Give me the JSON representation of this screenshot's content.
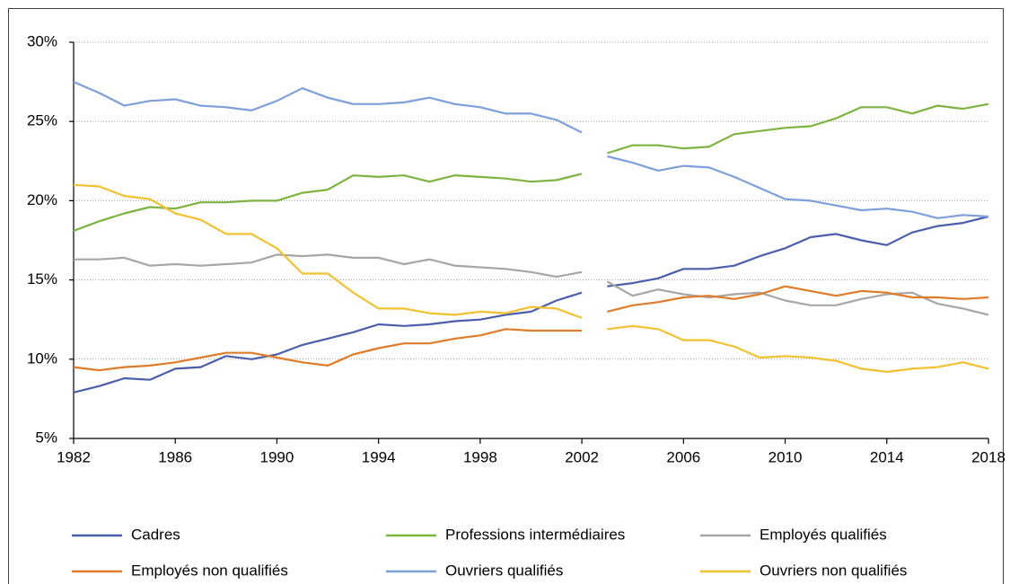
{
  "chart_data": {
    "type": "line",
    "x": [
      1982,
      1983,
      1984,
      1985,
      1986,
      1987,
      1988,
      1989,
      1990,
      1991,
      1992,
      1993,
      1994,
      1995,
      1996,
      1997,
      1998,
      1999,
      2000,
      2001,
      2002,
      null,
      2003,
      2004,
      2005,
      2006,
      2007,
      2008,
      2009,
      2010,
      2011,
      2012,
      2013,
      2014,
      2015,
      2016,
      2017,
      2018
    ],
    "xlim": [
      1982,
      2018
    ],
    "xticks": [
      1982,
      1986,
      1990,
      1994,
      1998,
      2002,
      2006,
      2010,
      2014,
      2018
    ],
    "ylim": [
      5,
      30
    ],
    "yticks": [
      {
        "value": 5,
        "label": "5%"
      },
      {
        "value": 10,
        "label": "10%"
      },
      {
        "value": 15,
        "label": "15%"
      },
      {
        "value": 20,
        "label": "20%"
      },
      {
        "value": 25,
        "label": "25%"
      },
      {
        "value": 30,
        "label": "30%"
      }
    ],
    "grid": true,
    "legend": "bottom",
    "series": [
      {
        "name": "Cadres",
        "color": "#4a5eab",
        "values": [
          7.9,
          8.3,
          8.8,
          8.7,
          9.4,
          9.5,
          10.2,
          10.0,
          10.3,
          10.9,
          11.3,
          11.7,
          12.2,
          12.1,
          12.2,
          12.4,
          12.5,
          12.8,
          13.0,
          13.7,
          14.2,
          null,
          14.6,
          14.8,
          15.1,
          15.7,
          15.7,
          15.9,
          16.5,
          17.0,
          17.7,
          17.9,
          17.5,
          17.2,
          18.0,
          18.4,
          18.6,
          19.0
        ]
      },
      {
        "name": "Professions intermédiaires",
        "color": "#7db441",
        "values": [
          18.1,
          18.7,
          19.2,
          19.6,
          19.5,
          19.9,
          19.9,
          20.0,
          20.0,
          20.5,
          20.7,
          21.6,
          21.5,
          21.6,
          21.2,
          21.6,
          21.5,
          21.4,
          21.2,
          21.3,
          21.7,
          null,
          23.0,
          23.5,
          23.5,
          23.3,
          23.4,
          24.2,
          24.4,
          24.6,
          24.7,
          25.2,
          25.9,
          25.9,
          25.5,
          26.0,
          25.8,
          26.1
        ]
      },
      {
        "name": "Employés qualifiés",
        "color": "#a6a6a6",
        "values": [
          16.3,
          16.3,
          16.4,
          15.9,
          16.0,
          15.9,
          16.0,
          16.1,
          16.6,
          16.5,
          16.6,
          16.4,
          16.4,
          16.0,
          16.3,
          15.9,
          15.8,
          15.7,
          15.5,
          15.2,
          15.5,
          null,
          14.9,
          14.0,
          14.4,
          14.1,
          13.9,
          14.1,
          14.2,
          13.7,
          13.4,
          13.4,
          13.8,
          14.1,
          14.2,
          13.5,
          13.2,
          12.8
        ]
      },
      {
        "name": "Employés non qualifiés",
        "color": "#e07b2a",
        "values": [
          9.5,
          9.3,
          9.5,
          9.6,
          9.8,
          10.1,
          10.4,
          10.4,
          10.1,
          9.8,
          9.6,
          10.3,
          10.7,
          11.0,
          11.0,
          11.3,
          11.5,
          11.9,
          11.8,
          11.8,
          11.8,
          null,
          13.0,
          13.4,
          13.6,
          13.9,
          14.0,
          13.8,
          14.1,
          14.6,
          14.3,
          14.0,
          14.3,
          14.2,
          13.9,
          13.9,
          13.8,
          13.9
        ]
      },
      {
        "name": "Ouvriers qualifiés",
        "color": "#7e9fd9",
        "values": [
          27.5,
          26.8,
          26.0,
          26.3,
          26.4,
          26.0,
          25.9,
          25.7,
          26.3,
          27.1,
          26.5,
          26.1,
          26.1,
          26.2,
          26.5,
          26.1,
          25.9,
          25.5,
          25.5,
          25.1,
          24.3,
          null,
          22.8,
          22.4,
          21.9,
          22.2,
          22.1,
          21.5,
          20.8,
          20.1,
          20.0,
          19.7,
          19.4,
          19.5,
          19.3,
          18.9,
          19.1,
          19.0
        ]
      },
      {
        "name": "Ouvriers non qualifiés",
        "color": "#f2c12e",
        "values": [
          21.0,
          20.9,
          20.3,
          20.1,
          19.2,
          18.8,
          17.9,
          17.9,
          17.0,
          15.4,
          15.4,
          14.2,
          13.2,
          13.2,
          12.9,
          12.8,
          13.0,
          12.9,
          13.3,
          13.2,
          12.6,
          null,
          11.9,
          12.1,
          11.9,
          11.2,
          11.2,
          10.8,
          10.1,
          10.2,
          10.1,
          9.9,
          9.4,
          9.2,
          9.4,
          9.5,
          9.8,
          9.4
        ]
      }
    ]
  }
}
